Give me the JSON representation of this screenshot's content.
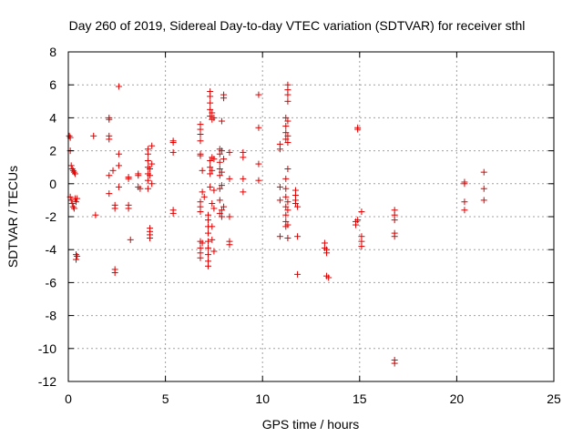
{
  "chart_data": {
    "type": "scatter",
    "title": "Day 260 of 2019, Sidereal Day-to-day VTEC variation (SDTVAR) for receiver sthl",
    "xlabel": "GPS time / hours",
    "ylabel": "SDTVAR / TECUs",
    "xlim": [
      0,
      25
    ],
    "ylim": [
      -12,
      8
    ],
    "xticks": [
      "0",
      "5",
      "10",
      "15",
      "20",
      "25"
    ],
    "yticks": [
      "-12",
      "-10",
      "-8",
      "-6",
      "-4",
      "-2",
      "0",
      "2",
      "4",
      "6",
      "8"
    ],
    "grid": true,
    "marker": "plus",
    "color": "#e00000",
    "series": [
      {
        "name": "SDTVAR",
        "points": [
          [
            0.05,
            2.9
          ],
          [
            0.1,
            2.8
          ],
          [
            0.1,
            2.0
          ],
          [
            0.15,
            1.1
          ],
          [
            0.2,
            0.9
          ],
          [
            0.25,
            0.8
          ],
          [
            0.3,
            0.7
          ],
          [
            0.35,
            0.6
          ],
          [
            0.1,
            -0.8
          ],
          [
            0.15,
            -1.0
          ],
          [
            0.2,
            -1.2
          ],
          [
            0.25,
            -1.4
          ],
          [
            0.3,
            -1.5
          ],
          [
            0.35,
            -0.9
          ],
          [
            0.4,
            -1.1
          ],
          [
            0.45,
            -0.9
          ],
          [
            0.4,
            -4.3
          ],
          [
            0.4,
            -4.6
          ],
          [
            0.45,
            -4.4
          ],
          [
            1.3,
            2.9
          ],
          [
            1.4,
            -1.9
          ],
          [
            2.1,
            4.0
          ],
          [
            2.1,
            3.9
          ],
          [
            2.1,
            2.9
          ],
          [
            2.1,
            2.7
          ],
          [
            2.1,
            0.5
          ],
          [
            2.1,
            -0.6
          ],
          [
            2.3,
            0.8
          ],
          [
            2.4,
            -1.3
          ],
          [
            2.4,
            -1.5
          ],
          [
            2.4,
            -5.2
          ],
          [
            2.4,
            -5.4
          ],
          [
            2.6,
            5.9
          ],
          [
            2.6,
            1.8
          ],
          [
            2.6,
            1.1
          ],
          [
            2.6,
            -0.2
          ],
          [
            3.1,
            0.4
          ],
          [
            3.1,
            0.3
          ],
          [
            3.1,
            -1.3
          ],
          [
            3.1,
            -1.5
          ],
          [
            3.2,
            -3.4
          ],
          [
            3.6,
            0.6
          ],
          [
            3.6,
            0.5
          ],
          [
            3.6,
            -0.2
          ],
          [
            3.7,
            -0.3
          ],
          [
            4.1,
            2.1
          ],
          [
            4.1,
            1.8
          ],
          [
            4.1,
            1.4
          ],
          [
            4.1,
            1.0
          ],
          [
            4.1,
            0.6
          ],
          [
            4.1,
            0.2
          ],
          [
            4.1,
            -0.3
          ],
          [
            4.2,
            0.9
          ],
          [
            4.2,
            0.5
          ],
          [
            4.2,
            -2.7
          ],
          [
            4.2,
            -2.9
          ],
          [
            4.2,
            -3.1
          ],
          [
            4.2,
            -3.3
          ],
          [
            4.3,
            2.3
          ],
          [
            4.3,
            1.2
          ],
          [
            4.3,
            0.0
          ],
          [
            5.4,
            2.6
          ],
          [
            5.4,
            2.5
          ],
          [
            5.4,
            1.9
          ],
          [
            5.4,
            -1.6
          ],
          [
            5.4,
            -1.8
          ],
          [
            6.8,
            3.6
          ],
          [
            6.8,
            3.3
          ],
          [
            6.8,
            3.0
          ],
          [
            6.8,
            2.6
          ],
          [
            6.8,
            1.8
          ],
          [
            6.8,
            1.7
          ],
          [
            6.8,
            -1.1
          ],
          [
            6.8,
            -1.4
          ],
          [
            6.8,
            -1.7
          ],
          [
            6.8,
            -3.5
          ],
          [
            6.8,
            -3.9
          ],
          [
            6.8,
            -4.2
          ],
          [
            6.8,
            -4.5
          ],
          [
            6.9,
            0.8
          ],
          [
            6.9,
            -0.5
          ],
          [
            6.9,
            -3.6
          ],
          [
            7.0,
            -0.8
          ],
          [
            7.2,
            -1.9
          ],
          [
            7.2,
            -2.2
          ],
          [
            7.2,
            -2.6
          ],
          [
            7.2,
            -3.0
          ],
          [
            7.2,
            -3.5
          ],
          [
            7.2,
            -3.9
          ],
          [
            7.2,
            -4.3
          ],
          [
            7.2,
            -4.7
          ],
          [
            7.2,
            -5.0
          ],
          [
            7.3,
            5.6
          ],
          [
            7.3,
            5.3
          ],
          [
            7.3,
            4.9
          ],
          [
            7.3,
            4.5
          ],
          [
            7.3,
            4.1
          ],
          [
            7.3,
            1.4
          ],
          [
            7.3,
            1.0
          ],
          [
            7.3,
            0.6
          ],
          [
            7.3,
            -0.2
          ],
          [
            7.4,
            4.3
          ],
          [
            7.4,
            3.9
          ],
          [
            7.4,
            1.6
          ],
          [
            7.4,
            0.8
          ],
          [
            7.4,
            -1.2
          ],
          [
            7.4,
            -2.6
          ],
          [
            7.4,
            -3.4
          ],
          [
            7.5,
            4.0
          ],
          [
            7.5,
            1.5
          ],
          [
            7.5,
            -0.4
          ],
          [
            7.5,
            -1.5
          ],
          [
            7.5,
            -4.1
          ],
          [
            7.8,
            2.1
          ],
          [
            7.8,
            1.8
          ],
          [
            7.8,
            1.3
          ],
          [
            7.8,
            0.9
          ],
          [
            7.8,
            0.5
          ],
          [
            7.8,
            -0.3
          ],
          [
            7.8,
            -1.0
          ],
          [
            7.8,
            -1.8
          ],
          [
            7.9,
            3.8
          ],
          [
            7.9,
            2.0
          ],
          [
            7.9,
            0.7
          ],
          [
            7.9,
            -0.1
          ],
          [
            7.9,
            -1.6
          ],
          [
            7.9,
            -2.0
          ],
          [
            8.0,
            5.4
          ],
          [
            8.0,
            5.2
          ],
          [
            8.0,
            1.5
          ],
          [
            8.0,
            -1.4
          ],
          [
            8.3,
            1.9
          ],
          [
            8.3,
            0.3
          ],
          [
            8.3,
            -2.0
          ],
          [
            8.3,
            -3.5
          ],
          [
            8.3,
            -3.7
          ],
          [
            9.0,
            1.9
          ],
          [
            9.0,
            1.6
          ],
          [
            9.0,
            0.3
          ],
          [
            9.0,
            -0.5
          ],
          [
            9.8,
            5.4
          ],
          [
            9.8,
            3.4
          ],
          [
            9.8,
            1.2
          ],
          [
            9.8,
            0.2
          ],
          [
            10.9,
            2.4
          ],
          [
            10.9,
            2.1
          ],
          [
            10.9,
            -0.2
          ],
          [
            10.9,
            -1.0
          ],
          [
            10.9,
            -3.2
          ],
          [
            11.2,
            4.0
          ],
          [
            11.2,
            3.5
          ],
          [
            11.2,
            3.1
          ],
          [
            11.2,
            2.7
          ],
          [
            11.2,
            0.3
          ],
          [
            11.2,
            -0.3
          ],
          [
            11.2,
            -0.8
          ],
          [
            11.2,
            -1.4
          ],
          [
            11.2,
            -1.9
          ],
          [
            11.2,
            -2.3
          ],
          [
            11.2,
            -2.6
          ],
          [
            11.3,
            6.0
          ],
          [
            11.3,
            5.7
          ],
          [
            11.3,
            5.4
          ],
          [
            11.3,
            5.0
          ],
          [
            11.3,
            3.8
          ],
          [
            11.3,
            2.9
          ],
          [
            11.3,
            2.5
          ],
          [
            11.3,
            0.9
          ],
          [
            11.3,
            -1.1
          ],
          [
            11.3,
            -1.6
          ],
          [
            11.3,
            -2.5
          ],
          [
            11.3,
            -3.3
          ],
          [
            11.7,
            -0.4
          ],
          [
            11.7,
            -0.7
          ],
          [
            11.7,
            -1.0
          ],
          [
            11.7,
            -1.2
          ],
          [
            11.8,
            -1.4
          ],
          [
            11.8,
            -3.2
          ],
          [
            11.8,
            -5.5
          ],
          [
            13.2,
            -3.6
          ],
          [
            13.2,
            -3.9
          ],
          [
            13.3,
            -4.0
          ],
          [
            13.3,
            -4.2
          ],
          [
            13.3,
            -5.6
          ],
          [
            13.4,
            -5.7
          ],
          [
            14.8,
            -2.3
          ],
          [
            14.8,
            -2.5
          ],
          [
            14.9,
            -2.2
          ],
          [
            14.9,
            3.4
          ],
          [
            14.9,
            3.3
          ],
          [
            15.1,
            -1.7
          ],
          [
            15.1,
            -3.2
          ],
          [
            15.1,
            -3.5
          ],
          [
            15.1,
            -3.8
          ],
          [
            16.8,
            -1.6
          ],
          [
            16.8,
            -1.9
          ],
          [
            16.8,
            -2.2
          ],
          [
            16.8,
            -3.0
          ],
          [
            16.8,
            -3.2
          ],
          [
            16.8,
            -10.7
          ],
          [
            16.8,
            -10.9
          ],
          [
            20.4,
            0.1
          ],
          [
            20.4,
            0.0
          ],
          [
            20.4,
            -1.1
          ],
          [
            20.4,
            -1.6
          ],
          [
            21.4,
            0.7
          ],
          [
            21.4,
            -0.3
          ],
          [
            21.4,
            -1.0
          ]
        ]
      }
    ]
  }
}
